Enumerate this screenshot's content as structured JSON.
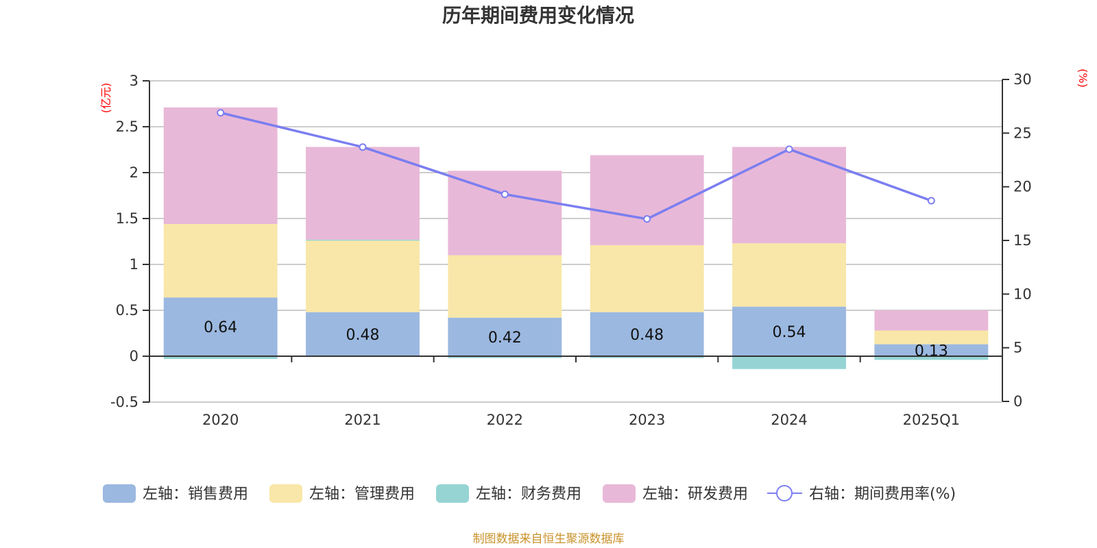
{
  "chart_data": {
    "type": "bar",
    "title": "历年期间费用变化情况",
    "categories": [
      "2020",
      "2021",
      "2022",
      "2023",
      "2024",
      "2025Q1"
    ],
    "left_axis": {
      "unit": "(亿元)",
      "range": [
        -0.5,
        3
      ],
      "ticks": [
        "3",
        "2.5",
        "2",
        "1.5",
        "1",
        "0.5",
        "0",
        "-0.5"
      ],
      "tick_values": [
        3,
        2.5,
        2,
        1.5,
        1,
        0.5,
        0,
        -0.5
      ]
    },
    "right_axis": {
      "unit": "(%)",
      "range": [
        0,
        30
      ],
      "ticks": [
        "30",
        "25",
        "20",
        "15",
        "10",
        "5",
        "0"
      ],
      "tick_values": [
        30,
        25,
        20,
        15,
        10,
        5,
        0
      ]
    },
    "grid": true,
    "series": [
      {
        "name": "左轴：销售费用",
        "type": "bar",
        "axis": "left",
        "color": "#9bb8e0",
        "values": [
          0.64,
          0.48,
          0.42,
          0.48,
          0.54,
          0.13
        ],
        "labels": [
          "0.64",
          "0.48",
          "0.42",
          "0.48",
          "0.54",
          "0.13"
        ]
      },
      {
        "name": "左轴：管理费用",
        "type": "bar",
        "axis": "left",
        "color": "#f8e7a8",
        "values": [
          0.8,
          0.78,
          0.68,
          0.73,
          0.69,
          0.15
        ]
      },
      {
        "name": "左轴：财务费用",
        "type": "bar",
        "axis": "left",
        "color": "#96d4d4",
        "values": [
          -0.03,
          0.01,
          -0.02,
          -0.02,
          -0.14,
          -0.04
        ]
      },
      {
        "name": "左轴：研发费用",
        "type": "bar",
        "axis": "left",
        "color": "#e8b8d8",
        "values": [
          1.27,
          1.01,
          0.92,
          0.98,
          1.05,
          0.22
        ]
      },
      {
        "name": "右轴：期间费用率(%)",
        "type": "line",
        "axis": "right",
        "color": "#7b7ef0",
        "values": [
          26.9,
          23.7,
          19.3,
          17.0,
          23.5,
          18.7
        ]
      }
    ],
    "legend_position": "bottom",
    "footer": "制图数据来自恒生聚源数据库"
  }
}
